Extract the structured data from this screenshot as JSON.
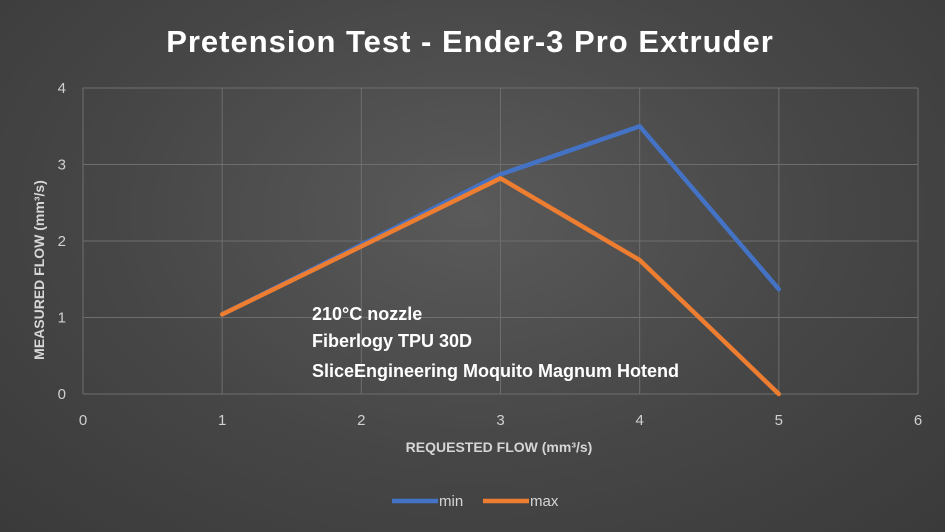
{
  "chart_data": {
    "type": "line",
    "title": "Pretension Test - Ender-3 Pro Extruder",
    "xlabel": "REQUESTED FLOW (mm³/s)",
    "ylabel": "MEASURED FLOW (mm³/s)",
    "xlim": [
      0,
      6
    ],
    "ylim": [
      0,
      4
    ],
    "x_ticks": [
      "0",
      "1",
      "2",
      "3",
      "4",
      "5",
      "6"
    ],
    "y_ticks": [
      "0",
      "1",
      "2",
      "3",
      "4"
    ],
    "grid": true,
    "legend_position": "bottom",
    "annotations": [
      "210°C nozzle",
      "Fiberlogy TPU 30D",
      "SliceEngineering Moquito Magnum Hotend"
    ],
    "series": [
      {
        "name": "min",
        "color": "#4472C4",
        "x": [
          1,
          2,
          3,
          4,
          5
        ],
        "y": [
          1.04,
          1.95,
          2.87,
          3.5,
          1.37
        ]
      },
      {
        "name": "max",
        "color": "#ED7D31",
        "x": [
          1,
          2,
          3,
          4,
          5
        ],
        "y": [
          1.04,
          1.93,
          2.82,
          1.75,
          0.0
        ]
      }
    ]
  }
}
